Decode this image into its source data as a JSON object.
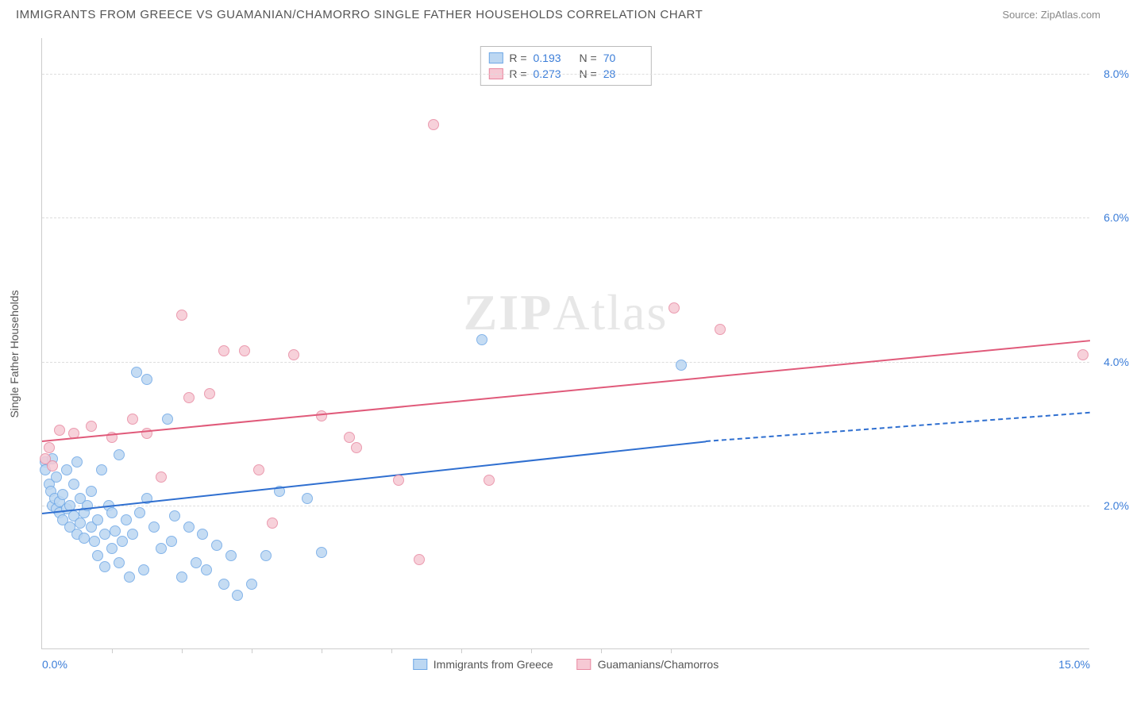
{
  "title": "IMMIGRANTS FROM GREECE VS GUAMANIAN/CHAMORRO SINGLE FATHER HOUSEHOLDS CORRELATION CHART",
  "source": "Source: ZipAtlas.com",
  "ylabel": "Single Father Households",
  "watermark": {
    "bold": "ZIP",
    "rest": "Atlas"
  },
  "chart": {
    "type": "scatter",
    "xlim": [
      0,
      15
    ],
    "ylim": [
      0,
      8.5
    ],
    "x_ticks": [
      0,
      5,
      10,
      15
    ],
    "x_tick_labels": [
      "0.0%",
      "",
      "",
      "15.0%"
    ],
    "x_minor_ticks": [
      1.0,
      2.0,
      3.0,
      4.0,
      5.0,
      6.0,
      7.0,
      8.0,
      9.0
    ],
    "y_gridlines": [
      2.0,
      4.0,
      6.0,
      8.0
    ],
    "y_tick_labels": [
      "2.0%",
      "4.0%",
      "6.0%",
      "8.0%"
    ],
    "grid_color": "#dddddd",
    "axis_color": "#cccccc",
    "background_color": "#ffffff",
    "tick_label_color": "#3b7dd8",
    "label_fontsize": 14,
    "title_fontsize": 15
  },
  "series": [
    {
      "id": "greece",
      "label": "Immigrants from Greece",
      "marker_fill": "#bcd7f2",
      "marker_stroke": "#6fa8e6",
      "marker_size": 14,
      "marker_opacity": 0.85,
      "line_color": "#2f6fd0",
      "line_width": 2,
      "R": "0.193",
      "N": "70",
      "trend": {
        "x1": 0,
        "y1": 1.9,
        "x2": 9.5,
        "y2": 2.9,
        "dash_x2": 15,
        "dash_y2": 3.3
      },
      "points": [
        [
          0.05,
          2.6
        ],
        [
          0.05,
          2.5
        ],
        [
          0.1,
          2.3
        ],
        [
          0.12,
          2.2
        ],
        [
          0.15,
          2.65
        ],
        [
          0.15,
          2.0
        ],
        [
          0.18,
          2.1
        ],
        [
          0.2,
          1.95
        ],
        [
          0.2,
          2.4
        ],
        [
          0.25,
          2.05
        ],
        [
          0.25,
          1.9
        ],
        [
          0.3,
          2.15
        ],
        [
          0.3,
          1.8
        ],
        [
          0.35,
          1.95
        ],
        [
          0.35,
          2.5
        ],
        [
          0.4,
          1.7
        ],
        [
          0.4,
          2.0
        ],
        [
          0.45,
          1.85
        ],
        [
          0.45,
          2.3
        ],
        [
          0.5,
          2.6
        ],
        [
          0.5,
          1.6
        ],
        [
          0.55,
          1.75
        ],
        [
          0.55,
          2.1
        ],
        [
          0.6,
          1.9
        ],
        [
          0.6,
          1.55
        ],
        [
          0.65,
          2.0
        ],
        [
          0.7,
          1.7
        ],
        [
          0.7,
          2.2
        ],
        [
          0.75,
          1.5
        ],
        [
          0.8,
          1.8
        ],
        [
          0.8,
          1.3
        ],
        [
          0.85,
          2.5
        ],
        [
          0.9,
          1.6
        ],
        [
          0.9,
          1.15
        ],
        [
          0.95,
          2.0
        ],
        [
          1.0,
          1.4
        ],
        [
          1.0,
          1.9
        ],
        [
          1.05,
          1.65
        ],
        [
          1.1,
          1.2
        ],
        [
          1.1,
          2.7
        ],
        [
          1.15,
          1.5
        ],
        [
          1.2,
          1.8
        ],
        [
          1.25,
          1.0
        ],
        [
          1.3,
          1.6
        ],
        [
          1.35,
          3.85
        ],
        [
          1.4,
          1.9
        ],
        [
          1.45,
          1.1
        ],
        [
          1.5,
          3.75
        ],
        [
          1.5,
          2.1
        ],
        [
          1.6,
          1.7
        ],
        [
          1.7,
          1.4
        ],
        [
          1.8,
          3.2
        ],
        [
          1.85,
          1.5
        ],
        [
          1.9,
          1.85
        ],
        [
          2.0,
          1.0
        ],
        [
          2.1,
          1.7
        ],
        [
          2.2,
          1.2
        ],
        [
          2.3,
          1.6
        ],
        [
          2.35,
          1.1
        ],
        [
          2.5,
          1.45
        ],
        [
          2.6,
          0.9
        ],
        [
          2.7,
          1.3
        ],
        [
          2.8,
          0.75
        ],
        [
          3.0,
          0.9
        ],
        [
          3.2,
          1.3
        ],
        [
          3.4,
          2.2
        ],
        [
          3.8,
          2.1
        ],
        [
          4.0,
          1.35
        ],
        [
          6.3,
          4.3
        ],
        [
          9.15,
          3.95
        ]
      ]
    },
    {
      "id": "guamanian",
      "label": "Guamanians/Chamorros",
      "marker_fill": "#f6c9d4",
      "marker_stroke": "#e88aa2",
      "marker_size": 14,
      "marker_opacity": 0.85,
      "line_color": "#e05a7a",
      "line_width": 2,
      "R": "0.273",
      "N": "28",
      "trend": {
        "x1": 0,
        "y1": 2.9,
        "x2": 15,
        "y2": 4.3
      },
      "points": [
        [
          0.05,
          2.65
        ],
        [
          0.1,
          2.8
        ],
        [
          0.15,
          2.55
        ],
        [
          0.25,
          3.05
        ],
        [
          0.45,
          3.0
        ],
        [
          0.7,
          3.1
        ],
        [
          1.0,
          2.95
        ],
        [
          1.3,
          3.2
        ],
        [
          1.5,
          3.0
        ],
        [
          1.7,
          2.4
        ],
        [
          2.0,
          4.65
        ],
        [
          2.1,
          3.5
        ],
        [
          2.4,
          3.55
        ],
        [
          2.6,
          4.15
        ],
        [
          2.9,
          4.15
        ],
        [
          3.1,
          2.5
        ],
        [
          3.3,
          1.75
        ],
        [
          3.6,
          4.1
        ],
        [
          4.0,
          3.25
        ],
        [
          4.4,
          2.95
        ],
        [
          4.5,
          2.8
        ],
        [
          5.1,
          2.35
        ],
        [
          5.4,
          1.25
        ],
        [
          5.6,
          7.3
        ],
        [
          6.4,
          2.35
        ],
        [
          9.05,
          4.75
        ],
        [
          9.7,
          4.45
        ],
        [
          14.9,
          4.1
        ]
      ]
    }
  ],
  "legend_top": {
    "label_R": "R",
    "label_N": "N",
    "label_eq": "="
  },
  "legend_bottom": [
    {
      "series": "greece"
    },
    {
      "series": "guamanian"
    }
  ]
}
